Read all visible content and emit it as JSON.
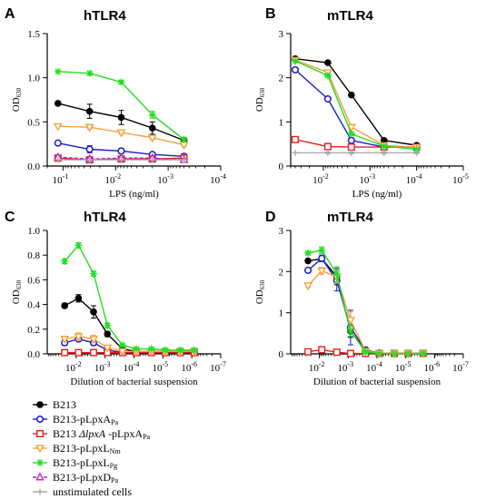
{
  "panels": [
    {
      "letter": "A",
      "title": "hTLR4",
      "type": "line",
      "xlabel": "LPS (ng/ml)",
      "ylabel": "OD",
      "ylabel_sub": "630",
      "x_scale": "log",
      "x_reversed": true,
      "x_range": [
        0.2,
        0.0001
      ],
      "xticks": [
        0.1,
        0.01,
        0.001,
        0.0001
      ],
      "xtick_labels": [
        {
          "base": "10",
          "exp": "-1"
        },
        {
          "base": "10",
          "exp": "-2"
        },
        {
          "base": "10",
          "exp": "-3"
        },
        {
          "base": "10",
          "exp": "-4"
        }
      ],
      "ylim": [
        0,
        1.5
      ],
      "yticks": [
        0.0,
        0.5,
        1.0,
        1.5
      ],
      "ytick_labels": [
        "0.0",
        "0.5",
        "1.0",
        "1.5"
      ],
      "x": [
        0.125,
        0.03125,
        0.0078125,
        0.002,
        0.0005
      ],
      "series": [
        {
          "key": "B213",
          "values": [
            0.71,
            0.62,
            0.55,
            0.43,
            0.29
          ],
          "err": [
            0,
            0.08,
            0.08,
            0.07,
            0.03
          ]
        },
        {
          "key": "pLpxA",
          "values": [
            0.26,
            0.19,
            0.17,
            0.13,
            0.11
          ],
          "err": [
            0,
            0.04,
            0.03,
            0.02,
            0.02
          ]
        },
        {
          "key": "dLpxA",
          "values": [
            0.09,
            0.07,
            0.08,
            0.08,
            0.09
          ],
          "err": [
            0,
            0.01,
            0.01,
            0.01,
            0.01
          ]
        },
        {
          "key": "pLpxL",
          "values": [
            0.45,
            0.44,
            0.38,
            0.32,
            0.24
          ],
          "err": [
            0,
            0.02,
            0.02,
            0.02,
            0.02
          ]
        },
        {
          "key": "pLpxLPg",
          "values": [
            1.07,
            1.05,
            0.95,
            0.58,
            0.3
          ],
          "err": [
            0,
            0.02,
            0.02,
            0.04,
            0.02
          ]
        },
        {
          "key": "pLpxD",
          "values": [
            0.1,
            0.08,
            0.09,
            0.09,
            0.07
          ],
          "err": [
            0,
            0.01,
            0.01,
            0.01,
            0.01
          ]
        },
        {
          "key": "unstim",
          "values": [
            0.07,
            0.07,
            0.07,
            0.07,
            0.07
          ],
          "err": [
            0,
            0,
            0,
            0,
            0
          ]
        }
      ]
    },
    {
      "letter": "B",
      "title": "mTLR4",
      "type": "line",
      "xlabel": "LPS (ng/ml)",
      "ylabel": "OD",
      "ylabel_sub": "630",
      "x_scale": "log",
      "x_reversed": true,
      "x_range": [
        0.05,
        1e-05
      ],
      "xticks": [
        0.01,
        0.001,
        0.0001,
        1e-05
      ],
      "xtick_labels": [
        {
          "base": "10",
          "exp": "-2"
        },
        {
          "base": "10",
          "exp": "-3"
        },
        {
          "base": "10",
          "exp": "-4"
        },
        {
          "base": "10",
          "exp": "-5"
        }
      ],
      "ylim": [
        0,
        3
      ],
      "yticks": [
        0,
        1,
        2,
        3
      ],
      "ytick_labels": [
        "0",
        "1",
        "2",
        "3"
      ],
      "x": [
        0.04,
        0.008,
        0.0025,
        0.0005,
        0.0001
      ],
      "series": [
        {
          "key": "B213",
          "values": [
            2.43,
            2.34,
            1.61,
            0.58,
            0.47
          ],
          "err": [
            0,
            0.02,
            0.03,
            0.03,
            0.02
          ]
        },
        {
          "key": "pLpxA",
          "values": [
            2.18,
            1.52,
            0.58,
            0.43,
            0.43
          ],
          "err": [
            0,
            0.03,
            0.02,
            0.02,
            0.02
          ]
        },
        {
          "key": "dLpxA",
          "values": [
            0.6,
            0.44,
            0.43,
            0.43,
            0.43
          ],
          "err": [
            0,
            0.02,
            0.02,
            0.02,
            0.02
          ]
        },
        {
          "key": "pLpxL",
          "values": [
            2.4,
            2.12,
            0.88,
            0.47,
            0.42
          ],
          "err": [
            0,
            0.03,
            0.04,
            0.02,
            0.02
          ]
        },
        {
          "key": "pLpxLPg",
          "values": [
            2.38,
            2.05,
            0.73,
            0.45,
            0.38
          ],
          "err": [
            0,
            0.03,
            0.03,
            0.02,
            0.02
          ]
        },
        {
          "key": "unstim",
          "values": [
            0.3,
            0.3,
            0.3,
            0.3,
            0.3
          ],
          "err": [
            0,
            0.02,
            0.02,
            0.02,
            0.02
          ]
        }
      ]
    },
    {
      "letter": "C",
      "title": "hTLR4",
      "type": "line",
      "xlabel": "Dilution of bacterial suspension",
      "ylabel": "OD",
      "ylabel_sub": "630",
      "x_scale": "log",
      "x_reversed": true,
      "x_range": [
        0.1,
        1e-07
      ],
      "xticks": [
        0.01,
        0.001,
        0.0001,
        1e-05,
        1e-06,
        1e-07
      ],
      "xtick_labels": [
        {
          "base": "10",
          "exp": "-2"
        },
        {
          "base": "10",
          "exp": "-3"
        },
        {
          "base": "10",
          "exp": "-4"
        },
        {
          "base": "10",
          "exp": "-5"
        },
        {
          "base": "10",
          "exp": "-6"
        },
        {
          "base": "10",
          "exp": "-7"
        }
      ],
      "ylim": [
        0,
        1.0
      ],
      "yticks": [
        0.0,
        0.2,
        0.4,
        0.6,
        0.8,
        1.0
      ],
      "ytick_labels": [
        "0.0",
        "0.2",
        "0.4",
        "0.6",
        "0.8",
        "1.0"
      ],
      "x": [
        0.025,
        0.0083,
        0.0025,
        0.00083,
        0.00025,
        8.3e-05,
        2.5e-05,
        8.3e-06,
        2.5e-06,
        8.3e-07
      ],
      "series": [
        {
          "key": "B213",
          "values": [
            0.39,
            0.45,
            0.34,
            0.16,
            0.04,
            0.02,
            0.02,
            0.02,
            0.02,
            0.02
          ],
          "err": [
            0.02,
            0.03,
            0.05,
            0.02,
            0.01,
            0.01,
            0.01,
            0.01,
            0.01,
            0.01
          ]
        },
        {
          "key": "pLpxA",
          "values": [
            0.09,
            0.12,
            0.09,
            0.03,
            0.01,
            0.01,
            0.01,
            0.01,
            0.01,
            0.01
          ],
          "err": [
            0.02,
            0.02,
            0.02,
            0.01,
            0.01,
            0.01,
            0.01,
            0.01,
            0.01,
            0.01
          ]
        },
        {
          "key": "dLpxA",
          "values": [
            0.01,
            0.01,
            0.01,
            0.01,
            0.01,
            0.01,
            0.01,
            0.01,
            0.01,
            0.01
          ],
          "err": [
            0,
            0,
            0,
            0,
            0,
            0,
            0,
            0,
            0,
            0
          ]
        },
        {
          "key": "pLpxL",
          "values": [
            0.12,
            0.14,
            0.12,
            0.05,
            0.02,
            0.02,
            0.02,
            0.02,
            0.02,
            0.02
          ],
          "err": [
            0.02,
            0.03,
            0.03,
            0.01,
            0.01,
            0.01,
            0.01,
            0.01,
            0.01,
            0.01
          ]
        },
        {
          "key": "pLpxLPg",
          "values": [
            0.75,
            0.88,
            0.65,
            0.23,
            0.07,
            0.04,
            0.04,
            0.03,
            0.03,
            0.03
          ],
          "err": [
            0.02,
            0.02,
            0.02,
            0.02,
            0.01,
            0.01,
            0.01,
            0.01,
            0.01,
            0.01
          ]
        }
      ]
    },
    {
      "letter": "D",
      "title": "mTLR4",
      "type": "line",
      "xlabel": "Dilution of bacterial suspension",
      "ylabel": "OD",
      "ylabel_sub": "630",
      "x_scale": "log",
      "x_reversed": true,
      "x_range": [
        0.1,
        1e-07
      ],
      "xticks": [
        0.01,
        0.001,
        0.0001,
        1e-05,
        1e-06,
        1e-07
      ],
      "xtick_labels": [
        {
          "base": "10",
          "exp": "-2"
        },
        {
          "base": "10",
          "exp": "-3"
        },
        {
          "base": "10",
          "exp": "-4"
        },
        {
          "base": "10",
          "exp": "-5"
        },
        {
          "base": "10",
          "exp": "-6"
        },
        {
          "base": "10",
          "exp": "-7"
        }
      ],
      "ylim": [
        0,
        3
      ],
      "yticks": [
        0,
        1,
        2,
        3
      ],
      "ytick_labels": [
        "0",
        "1",
        "2",
        "3"
      ],
      "x": [
        0.025,
        0.0083,
        0.0025,
        0.00083,
        0.00025,
        8.3e-05,
        2.5e-05,
        8.3e-06,
        2.5e-06
      ],
      "series": [
        {
          "key": "B213",
          "values": [
            2.26,
            2.31,
            1.88,
            0.55,
            0.06,
            0.01,
            0.01,
            0.01,
            0.01
          ],
          "err": [
            0.03,
            0.05,
            0.2,
            0.15,
            0.05,
            0.01,
            0.01,
            0.01,
            0.01
          ]
        },
        {
          "key": "pLpxA",
          "values": [
            2.03,
            2.32,
            1.78,
            0.64,
            0.09,
            0.02,
            0.01,
            0.01,
            0.01
          ],
          "err": [
            0.05,
            0.08,
            0.25,
            0.42,
            0.08,
            0.02,
            0.01,
            0.01,
            0.01
          ]
        },
        {
          "key": "dLpxA",
          "values": [
            0.05,
            0.1,
            0.04,
            0.01,
            0.01,
            0.01,
            0.01,
            0.01,
            0.01
          ],
          "err": [
            0.01,
            0.02,
            0.01,
            0.01,
            0.01,
            0.01,
            0.01,
            0.01,
            0.01
          ]
        },
        {
          "key": "pLpxL",
          "values": [
            1.66,
            2.02,
            1.87,
            0.82,
            0.07,
            0.02,
            0.01,
            0.01,
            0.01
          ],
          "err": [
            0.04,
            0.08,
            0.15,
            0.2,
            0.05,
            0.01,
            0.01,
            0.01,
            0.01
          ]
        },
        {
          "key": "pLpxLPg",
          "values": [
            2.45,
            2.52,
            1.94,
            0.55,
            0.05,
            0.01,
            0.01,
            0.01,
            0.01
          ],
          "err": [
            0.04,
            0.08,
            0.18,
            0.12,
            0.04,
            0.01,
            0.01,
            0.01,
            0.01
          ]
        }
      ]
    }
  ],
  "legend": [
    {
      "key": "B213",
      "parts": [
        {
          "t": "B213"
        }
      ],
      "color": "#000000",
      "marker": "filled-circle"
    },
    {
      "key": "pLpxA",
      "parts": [
        {
          "t": "B213-pLpxA"
        },
        {
          "t": "Pa",
          "sub": true
        }
      ],
      "color": "#1a1acc",
      "marker": "open-circle"
    },
    {
      "key": "dLpxA",
      "parts": [
        {
          "t": "B213 "
        },
        {
          "t": "ΔlpxA",
          "italic": true
        },
        {
          "t": " -pLpxA"
        },
        {
          "t": "Pa",
          "sub": true
        }
      ],
      "color": "#e02020",
      "marker": "open-square"
    },
    {
      "key": "pLpxL",
      "parts": [
        {
          "t": "B213-pLpxL"
        },
        {
          "t": "Nm",
          "sub": true
        }
      ],
      "color": "#f5a040",
      "marker": "open-triangle-down"
    },
    {
      "key": "pLpxLPg",
      "parts": [
        {
          "t": "B213-pLpxL"
        },
        {
          "t": "Pg",
          "sub": true
        }
      ],
      "color": "#22dd22",
      "marker": "asterisk"
    },
    {
      "key": "pLpxD",
      "parts": [
        {
          "t": "B213-pLpxD"
        },
        {
          "t": "Pa",
          "sub": true
        }
      ],
      "color": "#c020c0",
      "marker": "open-triangle-up",
      "dashed": true
    },
    {
      "key": "unstim",
      "parts": [
        {
          "t": "unstimulated cells"
        }
      ],
      "color": "#aaaaaa",
      "marker": "plus"
    }
  ]
}
